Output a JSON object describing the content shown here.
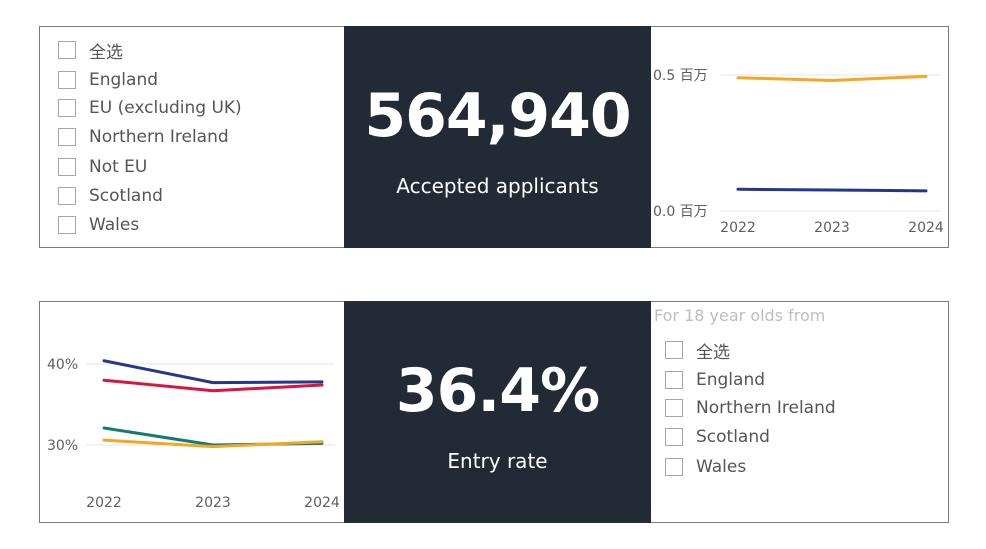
{
  "top_row": {
    "region_slicer": {
      "items": [
        {
          "label": "全选"
        },
        {
          "label": "England"
        },
        {
          "label": "EU (excluding UK)"
        },
        {
          "label": "Northern Ireland"
        },
        {
          "label": "Not EU"
        },
        {
          "label": "Scotland"
        },
        {
          "label": "Wales"
        }
      ]
    },
    "kpi": {
      "value": "564,940",
      "label": "Accepted applicants"
    },
    "chart_data": {
      "type": "line",
      "title": "",
      "x": [
        "2022",
        "2023",
        "2024"
      ],
      "y_ticks": [
        "0.5 百万",
        "0.0 百万"
      ],
      "ylim": [
        0,
        0.5
      ],
      "series": [
        {
          "name": "orange",
          "color": "#f2a824",
          "values": [
            0.49,
            0.48,
            0.495
          ]
        },
        {
          "name": "navy",
          "color": "#24378a",
          "values": [
            0.08,
            0.077,
            0.074
          ]
        }
      ]
    }
  },
  "bottom_row": {
    "chart_data": {
      "type": "line",
      "title": "",
      "x": [
        "2022",
        "2023",
        "2024"
      ],
      "y_ticks": [
        "40%",
        "30%"
      ],
      "ylim": [
        30,
        40
      ],
      "series": [
        {
          "name": "navy",
          "color": "#24378a",
          "values": [
            40.4,
            37.7,
            37.8
          ]
        },
        {
          "name": "red",
          "color": "#d9153d",
          "values": [
            38.0,
            36.7,
            37.4
          ]
        },
        {
          "name": "teal",
          "color": "#167a74",
          "values": [
            32.1,
            30.0,
            30.2
          ]
        },
        {
          "name": "orange",
          "color": "#f2a824",
          "values": [
            30.6,
            29.8,
            30.4
          ]
        }
      ]
    },
    "kpi": {
      "value": "36.4%",
      "label": "Entry rate"
    },
    "origin_slicer": {
      "heading": "For 18 year olds from",
      "items": [
        {
          "label": "全选"
        },
        {
          "label": "England"
        },
        {
          "label": "Northern Ireland"
        },
        {
          "label": "Scotland"
        },
        {
          "label": "Wales"
        }
      ]
    }
  }
}
